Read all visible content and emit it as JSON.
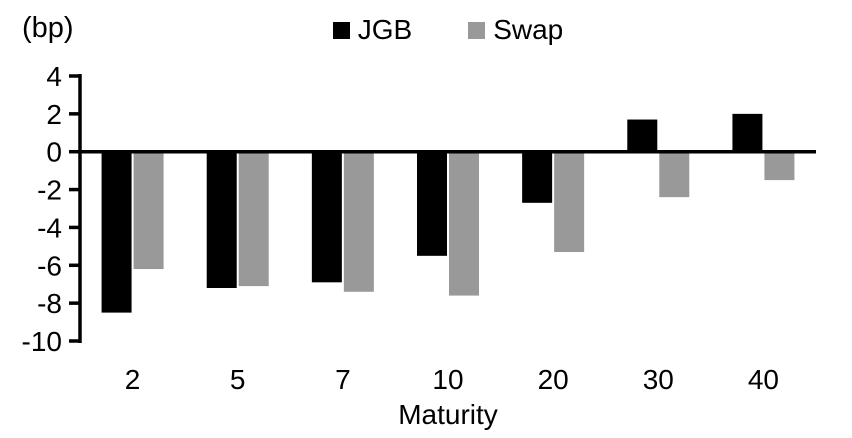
{
  "chart_data": {
    "type": "bar",
    "title": "",
    "y_unit_label": "(bp)",
    "xlabel": "Maturity",
    "ylabel": "",
    "categories": [
      "2",
      "5",
      "7",
      "10",
      "20",
      "30",
      "40"
    ],
    "series": [
      {
        "name": "JGB",
        "color": "#000000",
        "values": [
          -8.5,
          -7.2,
          -6.9,
          -5.5,
          -2.7,
          1.7,
          2.0
        ]
      },
      {
        "name": "Swap",
        "color": "#999999",
        "values": [
          -6.2,
          -7.1,
          -7.4,
          -7.6,
          -5.3,
          -2.4,
          -1.5
        ]
      }
    ],
    "ylim": [
      -10,
      4
    ],
    "yticks": [
      4,
      2,
      0,
      -2,
      -4,
      -6,
      -8,
      -10
    ],
    "grid": false,
    "legend_position": "top-center",
    "axis_color": "#000000"
  }
}
